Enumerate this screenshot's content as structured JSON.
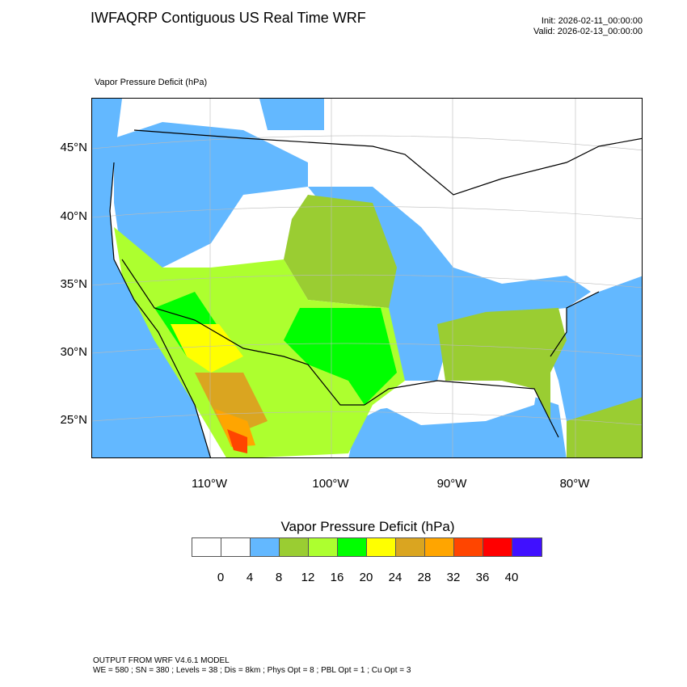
{
  "header": {
    "title": "IWFAQRP Contiguous US Real Time WRF",
    "init": "Init: 2026-02-11_00:00:00",
    "valid": "Valid: 2026-02-13_00:00:00"
  },
  "map": {
    "subtitle": "Vapor Pressure Deficit   (hPa)",
    "lat_labels": [
      "45°N",
      "40°N",
      "35°N",
      "30°N",
      "25°N"
    ],
    "lon_labels": [
      "110°W",
      "100°W",
      "90°W",
      "80°W"
    ]
  },
  "colorbar": {
    "title": "Vapor Pressure Deficit  (hPa)",
    "colors": [
      "#ffffff",
      "#ffffff",
      "#63b8ff",
      "#9acd32",
      "#adff2f",
      "#00ff00",
      "#ffff00",
      "#daa520",
      "#ffa500",
      "#ff4500",
      "#ff0000",
      "#4010ff"
    ],
    "labels": [
      "0",
      "4",
      "8",
      "12",
      "16",
      "20",
      "24",
      "28",
      "32",
      "36",
      "40"
    ]
  },
  "footer": {
    "line1": "OUTPUT FROM WRF V4.6.1 MODEL",
    "line2": "WE = 580 ; SN = 380 ; Levels = 38 ; Dis = 8km ; Phys Opt = 8 ; PBL Opt = 1 ; Cu Opt = 3"
  }
}
